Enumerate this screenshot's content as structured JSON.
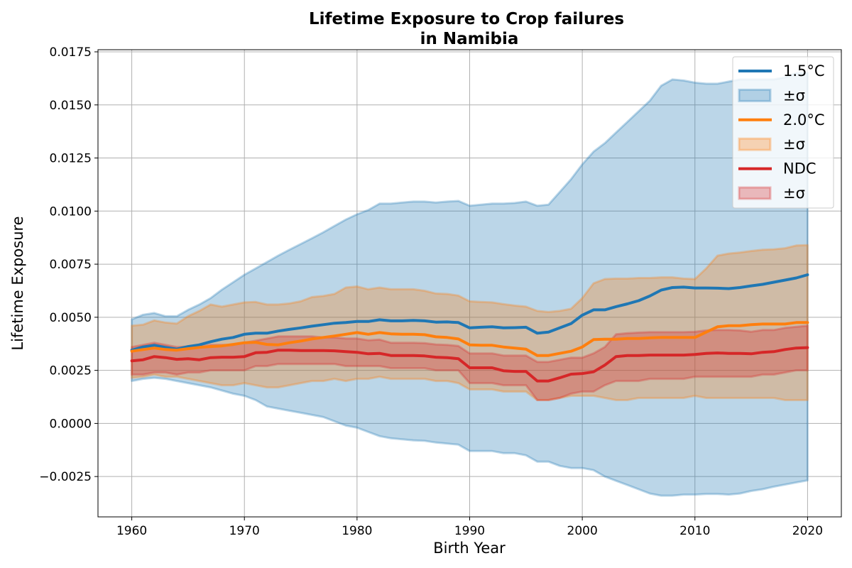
{
  "chart_data": {
    "type": "line",
    "title": "Lifetime Exposure to Crop failures",
    "subtitle": "in Namibia",
    "xlabel": "Birth Year",
    "ylabel": "Lifetime Exposure",
    "xlim": [
      1957,
      2023
    ],
    "ylim": [
      -0.0044,
      0.0176
    ],
    "x_ticks": [
      1960,
      1970,
      1980,
      1990,
      2000,
      2010,
      2020
    ],
    "x_tick_labels": [
      "1960",
      "1970",
      "1980",
      "1990",
      "2000",
      "2010",
      "2020"
    ],
    "y_ticks": [
      -0.0025,
      0.0,
      0.0025,
      0.005,
      0.0075,
      0.01,
      0.0125,
      0.015,
      0.0175
    ],
    "y_tick_labels": [
      "−0.0025",
      "0.0000",
      "0.0025",
      "0.0050",
      "0.0075",
      "0.0100",
      "0.0125",
      "0.0150",
      "0.0175"
    ],
    "grid": true,
    "legend_position": "top-right",
    "legend": [
      {
        "label": "1.5°C",
        "kind": "line",
        "color": "#1f77b4"
      },
      {
        "label": "±σ",
        "kind": "band",
        "color": "#1f77b4"
      },
      {
        "label": "2.0°C",
        "kind": "line",
        "color": "#ff7f0e"
      },
      {
        "label": "±σ",
        "kind": "band",
        "color": "#ff7f0e"
      },
      {
        "label": "NDC",
        "kind": "line",
        "color": "#d62728"
      },
      {
        "label": "±σ",
        "kind": "band",
        "color": "#d62728"
      }
    ],
    "x": [
      1960,
      1961,
      1962,
      1963,
      1964,
      1965,
      1966,
      1967,
      1968,
      1969,
      1970,
      1971,
      1972,
      1973,
      1974,
      1975,
      1976,
      1977,
      1978,
      1979,
      1980,
      1981,
      1982,
      1983,
      1984,
      1985,
      1986,
      1987,
      1988,
      1989,
      1990,
      1991,
      1992,
      1993,
      1994,
      1995,
      1996,
      1997,
      1998,
      1999,
      2000,
      2001,
      2002,
      2003,
      2004,
      2005,
      2006,
      2007,
      2008,
      2009,
      2010,
      2011,
      2012,
      2013,
      2014,
      2015,
      2016,
      2017,
      2018,
      2019,
      2020
    ],
    "series": [
      {
        "name": "1.5°C",
        "color": "#1f77b4",
        "mean": [
          0.00345,
          0.0036,
          0.00368,
          0.00358,
          0.0035,
          0.00362,
          0.0037,
          0.00385,
          0.00397,
          0.00405,
          0.0042,
          0.00425,
          0.00425,
          0.00435,
          0.00443,
          0.0045,
          0.00458,
          0.00465,
          0.00472,
          0.00475,
          0.0048,
          0.0048,
          0.00488,
          0.00483,
          0.00483,
          0.00485,
          0.00483,
          0.00477,
          0.00478,
          0.00475,
          0.0045,
          0.00453,
          0.00455,
          0.0045,
          0.00451,
          0.00453,
          0.00425,
          0.0043,
          0.0045,
          0.0047,
          0.0051,
          0.00535,
          0.00535,
          0.0055,
          0.00563,
          0.00578,
          0.006,
          0.00628,
          0.0064,
          0.00642,
          0.00638,
          0.00638,
          0.00637,
          0.00635,
          0.0064,
          0.00648,
          0.00655,
          0.00665,
          0.00675,
          0.00685,
          0.007
        ],
        "upper": [
          0.0049,
          0.00512,
          0.0052,
          0.00505,
          0.00505,
          0.00535,
          0.0056,
          0.0059,
          0.0063,
          0.00665,
          0.007,
          0.0073,
          0.0076,
          0.0079,
          0.00818,
          0.00845,
          0.00872,
          0.009,
          0.0093,
          0.0096,
          0.00985,
          0.01005,
          0.01035,
          0.01035,
          0.0104,
          0.01045,
          0.01045,
          0.0104,
          0.01045,
          0.01048,
          0.01025,
          0.0103,
          0.01035,
          0.01035,
          0.01038,
          0.01045,
          0.01025,
          0.0103,
          0.0109,
          0.0115,
          0.0122,
          0.0128,
          0.0132,
          0.0137,
          0.0142,
          0.0147,
          0.0152,
          0.0159,
          0.0162,
          0.01615,
          0.01605,
          0.016,
          0.016,
          0.0161,
          0.0162,
          0.0162,
          0.0162,
          0.0162,
          0.0163,
          0.0165,
          0.0165
        ],
        "lower": [
          0.002,
          0.0021,
          0.00215,
          0.0021,
          0.002,
          0.0019,
          0.0018,
          0.0017,
          0.00155,
          0.0014,
          0.0013,
          0.0011,
          0.0008,
          0.0007,
          0.0006,
          0.0005,
          0.0004,
          0.0003,
          0.0001,
          -0.0001,
          -0.0002,
          -0.0004,
          -0.0006,
          -0.0007,
          -0.00075,
          -0.0008,
          -0.00082,
          -0.0009,
          -0.00095,
          -0.001,
          -0.0013,
          -0.0013,
          -0.0013,
          -0.0014,
          -0.0014,
          -0.0015,
          -0.0018,
          -0.0018,
          -0.002,
          -0.0021,
          -0.0021,
          -0.0022,
          -0.0025,
          -0.0027,
          -0.0029,
          -0.0031,
          -0.0033,
          -0.0034,
          -0.0034,
          -0.00335,
          -0.00335,
          -0.00332,
          -0.00332,
          -0.00335,
          -0.0033,
          -0.00318,
          -0.0031,
          -0.00298,
          -0.00288,
          -0.00278,
          -0.00268
        ]
      },
      {
        "name": "2.0°C",
        "color": "#ff7f0e",
        "mean": [
          0.0034,
          0.00348,
          0.00355,
          0.00348,
          0.00345,
          0.00352,
          0.00358,
          0.00362,
          0.00365,
          0.00372,
          0.0038,
          0.00382,
          0.00372,
          0.0037,
          0.0038,
          0.00388,
          0.00398,
          0.00405,
          0.00412,
          0.0042,
          0.00428,
          0.0042,
          0.00428,
          0.00422,
          0.0042,
          0.0042,
          0.00418,
          0.00408,
          0.00405,
          0.00398,
          0.0037,
          0.00368,
          0.00368,
          0.0036,
          0.00355,
          0.0035,
          0.0032,
          0.0032,
          0.0033,
          0.0034,
          0.0036,
          0.00395,
          0.00397,
          0.00397,
          0.004,
          0.004,
          0.00403,
          0.00405,
          0.00405,
          0.00405,
          0.00405,
          0.0043,
          0.00455,
          0.0046,
          0.0046,
          0.00465,
          0.00468,
          0.00468,
          0.00468,
          0.00475,
          0.00475
        ],
        "upper": [
          0.0046,
          0.00465,
          0.00485,
          0.00475,
          0.0047,
          0.00505,
          0.0053,
          0.0056,
          0.0055,
          0.0056,
          0.0057,
          0.00572,
          0.0056,
          0.0056,
          0.00565,
          0.00575,
          0.00595,
          0.006,
          0.0061,
          0.0064,
          0.00645,
          0.00632,
          0.0064,
          0.00632,
          0.00632,
          0.00632,
          0.00625,
          0.00612,
          0.0061,
          0.00602,
          0.00575,
          0.00572,
          0.0057,
          0.00562,
          0.00555,
          0.0055,
          0.0053,
          0.00525,
          0.0053,
          0.0054,
          0.0059,
          0.0066,
          0.0068,
          0.00682,
          0.00682,
          0.00685,
          0.00685,
          0.00688,
          0.00688,
          0.00682,
          0.0068,
          0.0073,
          0.0079,
          0.008,
          0.00805,
          0.00812,
          0.00818,
          0.0082,
          0.00825,
          0.00838,
          0.0084
        ],
        "lower": [
          0.00215,
          0.0022,
          0.0023,
          0.0022,
          0.0022,
          0.0021,
          0.002,
          0.0019,
          0.0018,
          0.0018,
          0.0019,
          0.0018,
          0.0017,
          0.0017,
          0.0018,
          0.0019,
          0.002,
          0.002,
          0.0021,
          0.002,
          0.0021,
          0.0021,
          0.0022,
          0.0021,
          0.0021,
          0.0021,
          0.0021,
          0.002,
          0.002,
          0.0019,
          0.0016,
          0.0016,
          0.0016,
          0.0015,
          0.0015,
          0.0015,
          0.0011,
          0.0011,
          0.0012,
          0.0013,
          0.0013,
          0.0013,
          0.0012,
          0.0011,
          0.0011,
          0.0012,
          0.0012,
          0.0012,
          0.0012,
          0.0012,
          0.0013,
          0.0012,
          0.0012,
          0.0012,
          0.0012,
          0.0012,
          0.0012,
          0.0012,
          0.0011,
          0.0011,
          0.0011
        ]
      },
      {
        "name": "NDC",
        "color": "#d62728",
        "mean": [
          0.00295,
          0.003,
          0.00315,
          0.0031,
          0.00302,
          0.00305,
          0.003,
          0.0031,
          0.00312,
          0.00312,
          0.00315,
          0.00333,
          0.00335,
          0.00345,
          0.00345,
          0.00343,
          0.00343,
          0.00343,
          0.00342,
          0.00338,
          0.00335,
          0.00328,
          0.0033,
          0.0032,
          0.0032,
          0.0032,
          0.00318,
          0.00312,
          0.0031,
          0.00305,
          0.00262,
          0.00262,
          0.00262,
          0.00248,
          0.00245,
          0.00245,
          0.002,
          0.002,
          0.00215,
          0.00232,
          0.00235,
          0.00243,
          0.00275,
          0.00315,
          0.0032,
          0.0032,
          0.00322,
          0.00322,
          0.00322,
          0.00322,
          0.00325,
          0.0033,
          0.00332,
          0.0033,
          0.0033,
          0.00328,
          0.00335,
          0.00338,
          0.00348,
          0.00355,
          0.00357
        ],
        "upper": [
          0.0036,
          0.0037,
          0.0038,
          0.0037,
          0.0036,
          0.00362,
          0.0036,
          0.0037,
          0.0037,
          0.0037,
          0.0038,
          0.0039,
          0.004,
          0.0041,
          0.0041,
          0.0041,
          0.0041,
          0.00405,
          0.00405,
          0.004,
          0.004,
          0.00392,
          0.00395,
          0.0038,
          0.0038,
          0.0038,
          0.00378,
          0.00372,
          0.0037,
          0.00365,
          0.0033,
          0.0033,
          0.0033,
          0.0032,
          0.0032,
          0.0032,
          0.0029,
          0.0029,
          0.003,
          0.0031,
          0.0031,
          0.0033,
          0.0036,
          0.0042,
          0.00425,
          0.00428,
          0.0043,
          0.0043,
          0.0043,
          0.0043,
          0.00432,
          0.00438,
          0.0044,
          0.0044,
          0.00438,
          0.00432,
          0.0044,
          0.0044,
          0.0045,
          0.00455,
          0.0046
        ],
        "lower": [
          0.0023,
          0.0023,
          0.0024,
          0.0024,
          0.0023,
          0.0024,
          0.0024,
          0.0025,
          0.0025,
          0.0025,
          0.0025,
          0.0027,
          0.0027,
          0.0028,
          0.0028,
          0.0028,
          0.0028,
          0.0028,
          0.0028,
          0.0027,
          0.0027,
          0.0027,
          0.0027,
          0.0026,
          0.0026,
          0.0026,
          0.0026,
          0.0025,
          0.0025,
          0.0025,
          0.0019,
          0.0019,
          0.0019,
          0.0018,
          0.0018,
          0.0018,
          0.0011,
          0.0011,
          0.0012,
          0.0014,
          0.0015,
          0.0015,
          0.0018,
          0.002,
          0.002,
          0.002,
          0.0021,
          0.0021,
          0.0021,
          0.0021,
          0.0022,
          0.0022,
          0.0022,
          0.0022,
          0.0022,
          0.0022,
          0.0023,
          0.0023,
          0.0024,
          0.0025,
          0.0025
        ]
      }
    ]
  }
}
